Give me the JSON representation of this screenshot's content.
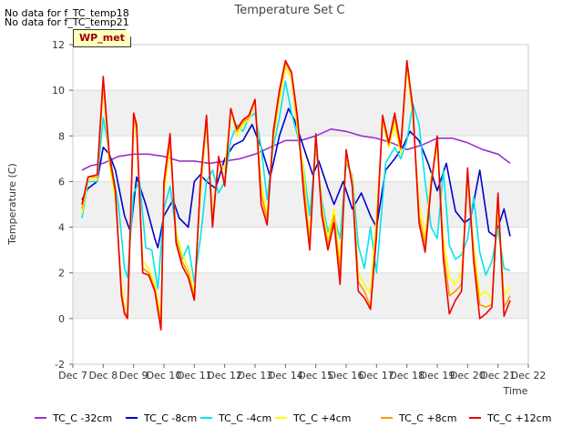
{
  "notes": [
    "No data for f_TC_temp18",
    "No data for f_TC_temp21"
  ],
  "badge": "WP_met",
  "chart_data": {
    "type": "line",
    "title": "Temperature Set C",
    "xlabel": "Time",
    "ylabel": "Temperature (C)",
    "ylim": [
      -2,
      12
    ],
    "xlim": [
      0,
      15
    ],
    "yticks": [
      -2,
      0,
      2,
      4,
      6,
      8,
      10,
      12
    ],
    "xtick_labels": [
      "Dec 7",
      "Dec 8",
      "Dec 9",
      "Dec 10",
      "Dec 11",
      "Dec 12",
      "Dec 13",
      "Dec 14",
      "Dec 15",
      "Dec 16",
      "Dec 17",
      "Dec 18",
      "Dec 19",
      "Dec 20",
      "Dec 21",
      "Dec 22"
    ],
    "grid": "horizontal bands",
    "legend_position": "bottom",
    "series": [
      {
        "name": "TC_C -32cm",
        "color": "#9933cc",
        "x": [
          0.3,
          0.6,
          1.0,
          1.5,
          2.0,
          2.5,
          3.0,
          3.5,
          4.0,
          4.5,
          5.0,
          5.5,
          6.0,
          6.5,
          7.0,
          7.5,
          8.0,
          8.5,
          9.0,
          9.5,
          10.0,
          10.5,
          11.0,
          11.5,
          12.0,
          12.5,
          13.0,
          13.5,
          14.0,
          14.4
        ],
        "y": [
          6.5,
          6.7,
          6.8,
          7.1,
          7.2,
          7.2,
          7.1,
          6.9,
          6.9,
          6.8,
          6.9,
          7.0,
          7.2,
          7.5,
          7.8,
          7.8,
          8.0,
          8.3,
          8.2,
          8.0,
          7.9,
          7.7,
          7.4,
          7.6,
          7.9,
          7.9,
          7.7,
          7.4,
          7.2,
          6.8
        ]
      },
      {
        "name": "TC_C -8cm",
        "color": "#0000cc",
        "x": [
          0.3,
          0.5,
          0.8,
          1.0,
          1.2,
          1.4,
          1.7,
          1.9,
          2.1,
          2.4,
          2.7,
          2.8,
          3.0,
          3.3,
          3.5,
          3.8,
          4.0,
          4.2,
          4.4,
          4.7,
          5.0,
          5.3,
          5.6,
          5.9,
          6.2,
          6.5,
          6.8,
          7.1,
          7.3,
          7.6,
          7.9,
          8.1,
          8.4,
          8.6,
          8.9,
          9.2,
          9.5,
          9.8,
          10.0,
          10.3,
          10.6,
          10.9,
          11.1,
          11.4,
          11.7,
          12.0,
          12.3,
          12.6,
          12.9,
          13.1,
          13.4,
          13.7,
          13.9,
          14.2,
          14.4
        ],
        "y": [
          5.2,
          5.7,
          6.0,
          7.5,
          7.2,
          6.5,
          4.5,
          3.8,
          6.2,
          5.0,
          3.5,
          3.1,
          4.5,
          5.2,
          4.4,
          4.0,
          6.0,
          6.3,
          6.0,
          5.7,
          7.0,
          7.6,
          7.8,
          8.5,
          7.5,
          6.2,
          8.0,
          9.2,
          8.7,
          7.5,
          6.3,
          6.9,
          5.7,
          5.0,
          6.0,
          4.8,
          5.5,
          4.5,
          4.0,
          6.5,
          7.0,
          7.6,
          8.2,
          7.8,
          6.8,
          5.6,
          6.8,
          4.7,
          4.2,
          4.4,
          6.5,
          3.8,
          3.6,
          4.8,
          3.6
        ]
      },
      {
        "name": "TC_C -4cm",
        "color": "#00e5ee",
        "x": [
          0.3,
          0.5,
          0.8,
          1.0,
          1.3,
          1.5,
          1.7,
          1.8,
          2.0,
          2.2,
          2.4,
          2.6,
          2.8,
          3.0,
          3.2,
          3.4,
          3.6,
          3.8,
          4.0,
          4.2,
          4.4,
          4.6,
          4.8,
          5.0,
          5.2,
          5.4,
          5.6,
          5.8,
          6.0,
          6.2,
          6.4,
          6.6,
          6.8,
          7.0,
          7.2,
          7.4,
          7.6,
          7.8,
          8.0,
          8.2,
          8.4,
          8.6,
          8.8,
          9.0,
          9.2,
          9.4,
          9.6,
          9.8,
          10.0,
          10.3,
          10.6,
          10.8,
          11.0,
          11.2,
          11.4,
          11.6,
          11.8,
          12.0,
          12.2,
          12.4,
          12.6,
          12.8,
          13.0,
          13.2,
          13.4,
          13.6,
          13.8,
          14.0,
          14.2,
          14.4
        ],
        "y": [
          4.4,
          6.0,
          6.0,
          8.8,
          6.5,
          5.0,
          2.2,
          1.8,
          5.5,
          6.0,
          3.1,
          3.0,
          1.3,
          4.8,
          5.8,
          3.8,
          2.6,
          3.2,
          1.6,
          3.5,
          6.0,
          6.5,
          5.5,
          6.0,
          7.8,
          8.5,
          8.2,
          8.8,
          9.0,
          7.5,
          5.2,
          7.5,
          8.8,
          10.4,
          9.0,
          8.0,
          6.6,
          4.5,
          7.5,
          5.2,
          3.8,
          4.5,
          3.5,
          6.8,
          6.3,
          3.2,
          2.2,
          4.0,
          2.0,
          6.8,
          7.5,
          7.0,
          7.8,
          9.4,
          8.5,
          6.0,
          4.0,
          3.5,
          6.5,
          3.2,
          2.6,
          2.8,
          3.5,
          5.3,
          2.9,
          1.9,
          2.5,
          3.9,
          2.2,
          2.1
        ]
      },
      {
        "name": "TC_C +4cm",
        "color": "#ffff00",
        "x": [
          0.3,
          0.5,
          0.8,
          1.0,
          1.2,
          1.4,
          1.6,
          1.7,
          1.8,
          2.0,
          2.1,
          2.3,
          2.5,
          2.7,
          2.9,
          3.0,
          3.2,
          3.4,
          3.6,
          3.8,
          4.0,
          4.2,
          4.4,
          4.6,
          4.8,
          5.0,
          5.2,
          5.4,
          5.6,
          5.8,
          6.0,
          6.2,
          6.4,
          6.6,
          6.8,
          7.0,
          7.2,
          7.4,
          7.6,
          7.8,
          8.0,
          8.2,
          8.4,
          8.6,
          8.8,
          9.0,
          9.2,
          9.4,
          9.6,
          9.8,
          10.0,
          10.2,
          10.4,
          10.6,
          10.8,
          11.0,
          11.2,
          11.4,
          11.6,
          11.8,
          12.0,
          12.2,
          12.4,
          12.6,
          12.8,
          13.0,
          13.2,
          13.4,
          13.6,
          13.8,
          14.0,
          14.2,
          14.4
        ],
        "y": [
          4.6,
          6.1,
          6.1,
          10.2,
          6.8,
          5.2,
          1.5,
          0.5,
          0.4,
          8.5,
          8.0,
          2.5,
          2.2,
          1.5,
          0.1,
          5.5,
          7.5,
          3.8,
          2.8,
          2.2,
          1.1,
          5.5,
          8.5,
          4.5,
          6.9,
          6.5,
          9.2,
          8.0,
          8.5,
          8.7,
          9.5,
          6.0,
          4.5,
          7.8,
          9.5,
          11.0,
          10.5,
          8.2,
          6.5,
          3.5,
          7.8,
          5.0,
          3.5,
          4.8,
          2.5,
          7.0,
          6.2,
          2.0,
          1.5,
          1.1,
          4.5,
          8.6,
          7.5,
          8.5,
          7.2,
          11.0,
          8.8,
          5.0,
          3.5,
          6.2,
          7.5,
          3.5,
          1.8,
          1.5,
          2.0,
          6.0,
          3.2,
          1.0,
          1.2,
          0.8,
          4.8,
          1.0,
          1.4
        ]
      },
      {
        "name": "TC_C +8cm",
        "color": "#ff9900",
        "x": [
          0.3,
          0.5,
          0.8,
          1.0,
          1.2,
          1.4,
          1.6,
          1.7,
          1.8,
          2.0,
          2.1,
          2.3,
          2.5,
          2.7,
          2.9,
          3.0,
          3.2,
          3.4,
          3.6,
          3.8,
          4.0,
          4.2,
          4.4,
          4.6,
          4.8,
          5.0,
          5.2,
          5.4,
          5.6,
          5.8,
          6.0,
          6.2,
          6.4,
          6.6,
          6.8,
          7.0,
          7.2,
          7.4,
          7.6,
          7.8,
          8.0,
          8.2,
          8.4,
          8.6,
          8.8,
          9.0,
          9.2,
          9.4,
          9.6,
          9.8,
          10.0,
          10.2,
          10.4,
          10.6,
          10.8,
          11.0,
          11.2,
          11.4,
          11.6,
          11.8,
          12.0,
          12.2,
          12.4,
          12.6,
          12.8,
          13.0,
          13.2,
          13.4,
          13.6,
          13.8,
          14.0,
          14.2,
          14.4
        ],
        "y": [
          4.8,
          6.2,
          6.2,
          10.4,
          7.0,
          5.5,
          1.2,
          0.3,
          0.1,
          8.8,
          8.3,
          2.2,
          2.0,
          1.3,
          -0.3,
          5.8,
          7.8,
          3.5,
          2.5,
          2.0,
          0.9,
          5.8,
          8.7,
          4.3,
          7.0,
          6.0,
          9.2,
          8.2,
          8.6,
          8.8,
          9.6,
          5.5,
          4.3,
          8.0,
          9.8,
          11.2,
          10.7,
          8.5,
          6.0,
          3.2,
          8.0,
          4.8,
          3.2,
          4.5,
          2.0,
          7.2,
          6.0,
          1.6,
          1.2,
          0.5,
          4.0,
          8.8,
          7.6,
          8.8,
          7.4,
          11.2,
          9.0,
          4.5,
          3.2,
          6.0,
          7.8,
          3.0,
          1.0,
          1.2,
          1.5,
          6.3,
          2.8,
          0.6,
          0.5,
          0.6,
          5.2,
          0.5,
          1.0
        ]
      },
      {
        "name": "TC_C +12cm",
        "color": "#ee0000",
        "x": [
          0.3,
          0.5,
          0.8,
          1.0,
          1.2,
          1.4,
          1.6,
          1.7,
          1.8,
          2.0,
          2.1,
          2.3,
          2.5,
          2.7,
          2.9,
          3.0,
          3.2,
          3.4,
          3.6,
          3.8,
          4.0,
          4.2,
          4.4,
          4.6,
          4.8,
          5.0,
          5.2,
          5.4,
          5.6,
          5.8,
          6.0,
          6.2,
          6.4,
          6.6,
          6.8,
          7.0,
          7.2,
          7.4,
          7.6,
          7.8,
          8.0,
          8.2,
          8.4,
          8.6,
          8.8,
          9.0,
          9.2,
          9.4,
          9.6,
          9.8,
          10.0,
          10.2,
          10.4,
          10.6,
          10.8,
          11.0,
          11.2,
          11.4,
          11.6,
          11.8,
          12.0,
          12.2,
          12.4,
          12.6,
          12.8,
          13.0,
          13.2,
          13.4,
          13.6,
          13.8,
          14.0,
          14.2,
          14.4
        ],
        "y": [
          5.0,
          6.2,
          6.3,
          10.6,
          7.2,
          5.6,
          1.0,
          0.2,
          0.0,
          9.0,
          8.5,
          2.0,
          1.9,
          1.2,
          -0.5,
          6.0,
          8.1,
          3.3,
          2.3,
          1.8,
          0.8,
          6.0,
          8.9,
          4.0,
          7.1,
          5.8,
          9.2,
          8.3,
          8.7,
          8.9,
          9.6,
          5.0,
          4.1,
          8.2,
          10.0,
          11.3,
          10.8,
          8.8,
          5.5,
          3.0,
          8.1,
          4.5,
          3.0,
          4.2,
          1.5,
          7.4,
          5.8,
          1.2,
          0.9,
          0.4,
          3.6,
          8.9,
          7.7,
          9.0,
          7.5,
          11.3,
          9.2,
          4.2,
          2.9,
          5.8,
          8.0,
          2.6,
          0.2,
          0.8,
          1.2,
          6.6,
          2.5,
          0.0,
          0.2,
          0.5,
          5.5,
          0.1,
          0.8
        ]
      }
    ]
  }
}
